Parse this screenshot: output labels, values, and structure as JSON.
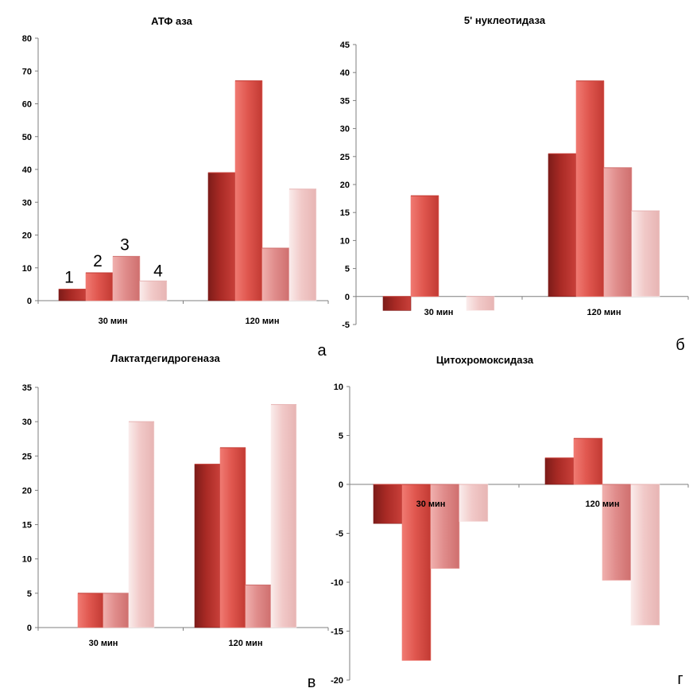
{
  "colors": {
    "series": [
      [
        "#a92a25",
        "#c9403a",
        "#7d1c19"
      ],
      [
        "#e0574f",
        "#c23a33",
        "#f07a72"
      ],
      [
        "#e08d8c",
        "#cf6f6e",
        "#f0b0ae"
      ],
      [
        "#f1c9c8",
        "#e7b4b3",
        "#faeceb"
      ]
    ]
  },
  "chart_data": [
    {
      "type": "bar",
      "title": "АТФ аза",
      "panel_letter": "а",
      "categories": [
        "30 мин",
        "120 мин"
      ],
      "series": [
        {
          "name": "1",
          "values": [
            3.5,
            39
          ]
        },
        {
          "name": "2",
          "values": [
            8.5,
            67
          ]
        },
        {
          "name": "3",
          "values": [
            13.5,
            16
          ]
        },
        {
          "name": "4",
          "values": [
            6,
            34
          ]
        }
      ],
      "bar_labels": [
        "1",
        "2",
        "3",
        "4"
      ],
      "ylim": [
        0,
        80
      ],
      "yticks": [
        0,
        10,
        20,
        30,
        40,
        50,
        60,
        70,
        80
      ],
      "xlabel": "",
      "ylabel": ""
    },
    {
      "type": "bar",
      "title": "5' нуклеотидаза",
      "panel_letter": "б",
      "categories": [
        "30 мин",
        "120 мин"
      ],
      "series": [
        {
          "values": [
            -2.5,
            25.5
          ]
        },
        {
          "values": [
            18,
            38.5
          ]
        },
        {
          "values": [
            0,
            23
          ]
        },
        {
          "values": [
            -2.5,
            15.3
          ]
        }
      ],
      "ylim": [
        -5,
        45
      ],
      "yticks": [
        -5,
        0,
        5,
        10,
        15,
        20,
        25,
        30,
        35,
        40,
        45
      ],
      "xlabel": "",
      "ylabel": ""
    },
    {
      "type": "bar",
      "title": "Лактатдегидрогеназа",
      "panel_letter": "в",
      "categories": [
        "30 мин",
        "120 мин"
      ],
      "series": [
        {
          "values": [
            0,
            23.8
          ]
        },
        {
          "values": [
            5,
            26.2
          ]
        },
        {
          "values": [
            5,
            6.2
          ]
        },
        {
          "values": [
            30,
            32.5
          ]
        }
      ],
      "ylim": [
        0,
        35
      ],
      "yticks": [
        0,
        5,
        10,
        15,
        20,
        25,
        30,
        35
      ],
      "xlabel": "",
      "ylabel": ""
    },
    {
      "type": "bar",
      "title": "Цитохромоксидаза",
      "panel_letter": "г",
      "categories": [
        "30 мин",
        "120 мин"
      ],
      "series": [
        {
          "values": [
            -4,
            2.7
          ]
        },
        {
          "values": [
            -18,
            4.7
          ]
        },
        {
          "values": [
            -8.6,
            -9.8
          ]
        },
        {
          "values": [
            -3.8,
            -14.4
          ]
        }
      ],
      "ylim": [
        -20,
        10
      ],
      "yticks": [
        -20,
        -15,
        -10,
        -5,
        0,
        5,
        10
      ],
      "xlabel": "",
      "ylabel": ""
    }
  ]
}
